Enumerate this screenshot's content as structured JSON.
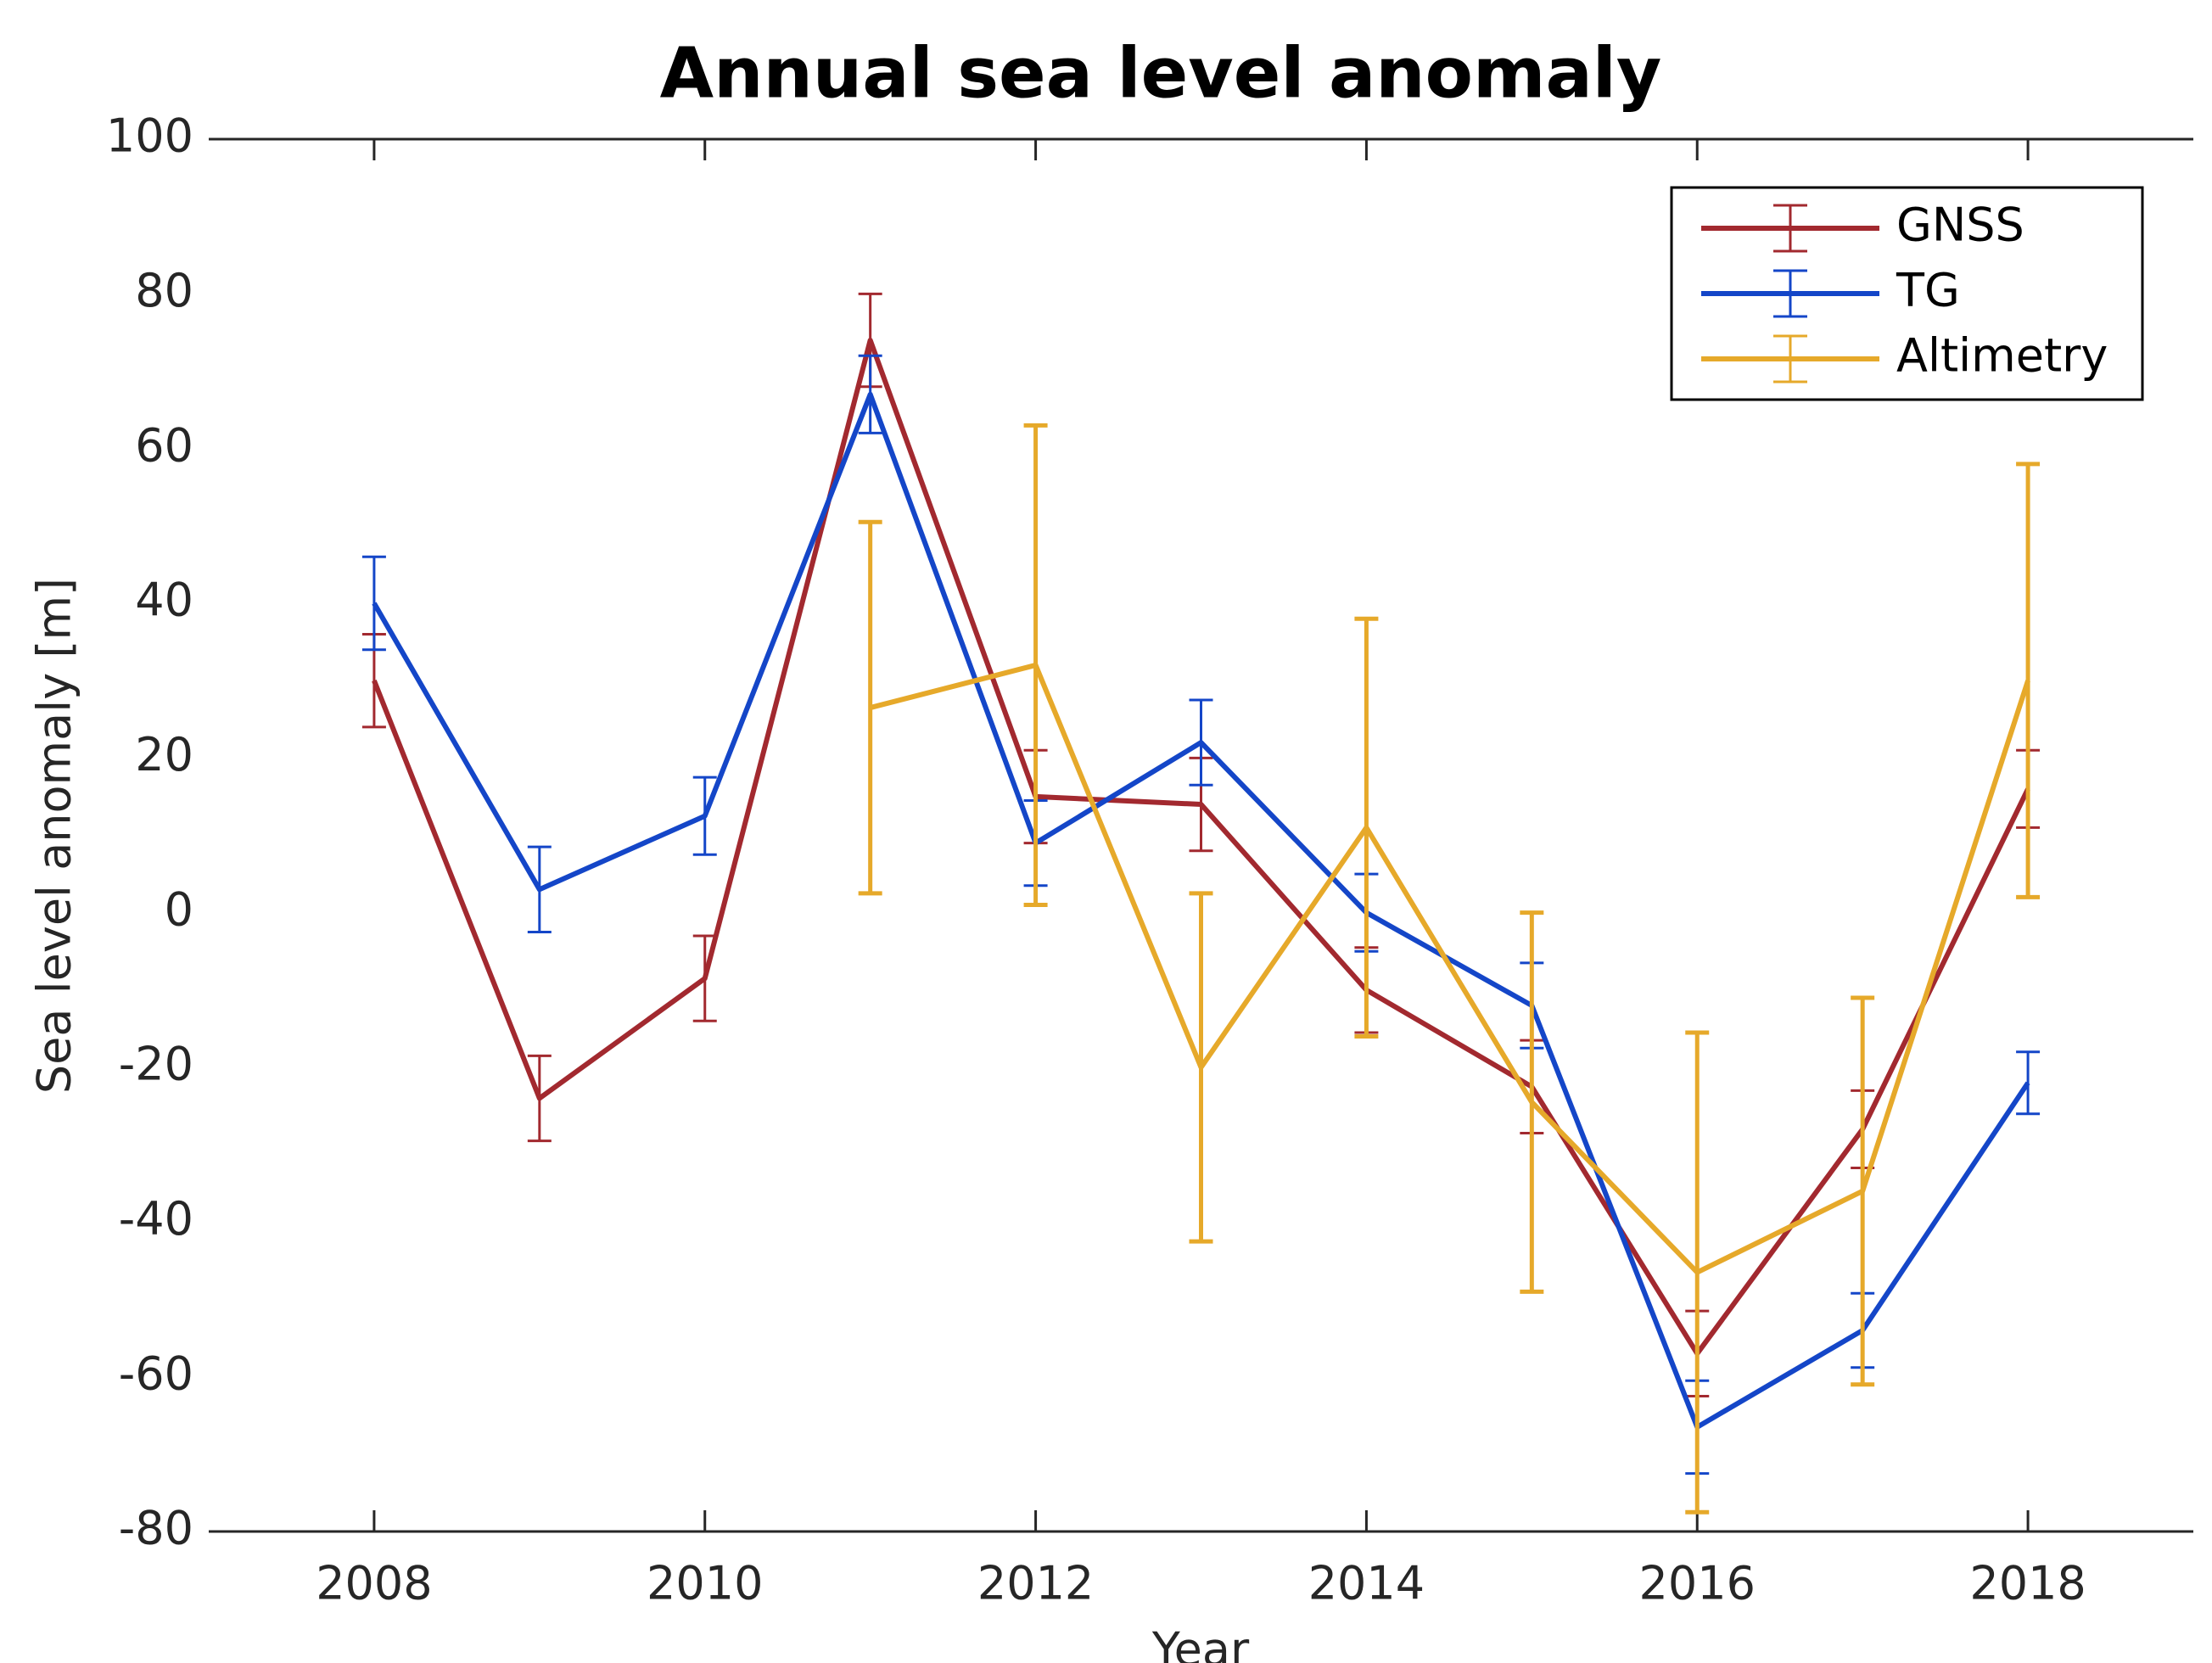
{
  "chart_data": {
    "type": "line",
    "title": "Annual sea level anomaly",
    "x_label": "Year",
    "y_label": "Sea level anomaly [m]",
    "x": [
      2008,
      2009,
      2010,
      2011,
      2012,
      2013,
      2014,
      2015,
      2016,
      2017,
      2018
    ],
    "series": [
      {
        "name": "GNSS",
        "color": "#a2292f",
        "values": [
          30,
          -24,
          -8.5,
          74,
          15,
          14,
          -10,
          -22.5,
          -57,
          -28,
          16
        ],
        "errors": [
          6,
          5.5,
          5.5,
          6,
          6,
          6,
          5.5,
          6,
          5.5,
          5,
          5
        ]
      },
      {
        "name": "TG",
        "color": "#1446c8",
        "values": [
          40,
          3,
          12.5,
          67,
          9,
          22,
          0,
          -12,
          -66.5,
          -54,
          -22
        ],
        "errors": [
          6,
          5.5,
          5,
          5,
          5.5,
          5.5,
          5,
          5.5,
          6,
          4.8,
          4
        ]
      },
      {
        "name": "Altimetry",
        "color": "#e6a92a",
        "values": [
          null,
          null,
          null,
          26.5,
          32,
          -20,
          11,
          -24.5,
          -46.5,
          -36,
          30
        ],
        "errors": [
          null,
          null,
          null,
          24,
          31,
          22.5,
          27,
          24.5,
          31,
          25,
          28
        ]
      }
    ],
    "xlim": [
      2007,
      2019
    ],
    "xticks": [
      2008,
      2010,
      2012,
      2014,
      2016,
      2018
    ],
    "ylim": [
      -80,
      100
    ],
    "yticks": [
      -80,
      -60,
      -40,
      -20,
      0,
      20,
      40,
      60,
      80,
      100
    ],
    "legend": "upper right"
  }
}
